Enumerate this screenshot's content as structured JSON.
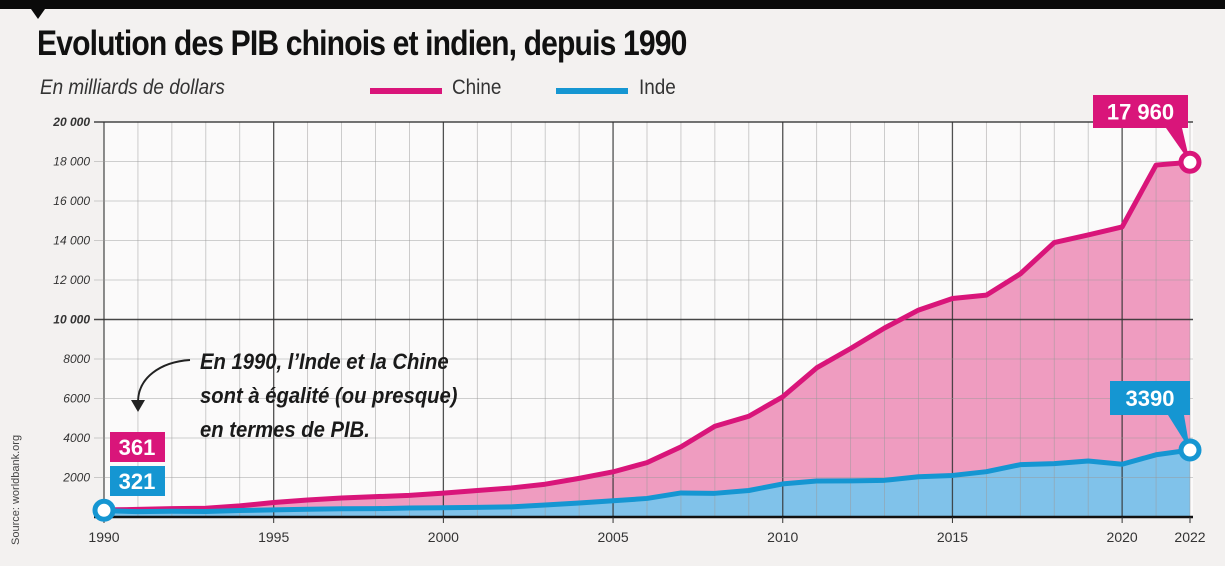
{
  "chart_data": {
    "type": "area",
    "title": "Evolution des PIB chinois et indien, depuis 1990",
    "subtitle": "En milliards de dollars",
    "source": "Source: worldbank.org",
    "x": [
      1990,
      1991,
      1992,
      1993,
      1994,
      1995,
      1996,
      1997,
      1998,
      1999,
      2000,
      2001,
      2002,
      2003,
      2004,
      2005,
      2006,
      2007,
      2008,
      2009,
      2010,
      2011,
      2012,
      2013,
      2014,
      2015,
      2016,
      2017,
      2018,
      2019,
      2020,
      2021,
      2022
    ],
    "series": [
      {
        "name": "Chine",
        "color": "#d9157a",
        "fill": "#ef9cc0",
        "values": [
          361,
          383,
          427,
          445,
          564,
          734,
          863,
          962,
          1029,
          1094,
          1211,
          1339,
          1471,
          1660,
          1955,
          2286,
          2752,
          3550,
          4594,
          5102,
          6087,
          7552,
          8532,
          9570,
          10476,
          11062,
          11233,
          12310,
          13895,
          14280,
          14688,
          17820,
          17960
        ]
      },
      {
        "name": "Inde",
        "color": "#1596d2",
        "fill": "#80c2ea",
        "values": [
          321,
          270,
          288,
          279,
          327,
          360,
          393,
          415,
          421,
          458,
          468,
          485,
          515,
          608,
          709,
          820,
          940,
          1217,
          1199,
          1342,
          1676,
          1823,
          1828,
          1857,
          2039,
          2104,
          2295,
          2651,
          2703,
          2836,
          2672,
          3150,
          3390
        ]
      }
    ],
    "xlim": [
      1990,
      2022
    ],
    "ylim": [
      0,
      20000
    ],
    "yticks": [
      2000,
      4000,
      6000,
      8000,
      10000,
      12000,
      14000,
      16000,
      18000,
      20000
    ],
    "ytick_labels": [
      "2000",
      "4000",
      "6000",
      "8000",
      "10 000",
      "12 000",
      "14 000",
      "16 000",
      "18 000",
      "20 000"
    ],
    "xticks": [
      1990,
      1995,
      2000,
      2005,
      2010,
      2015,
      2020,
      2022
    ],
    "xtick_labels": [
      "1990",
      "1995",
      "2000",
      "2005",
      "2010",
      "2015",
      "2020",
      "2022"
    ],
    "grid": true,
    "legend_placement": "top",
    "data_labels": {
      "china_start": "361",
      "india_start": "321",
      "china_end": "17 960",
      "india_end": "3390"
    },
    "annotation": [
      "En 1990, l’Inde et la Chine",
      "sont à égalité (ou presque)",
      "en termes de PIB."
    ]
  }
}
